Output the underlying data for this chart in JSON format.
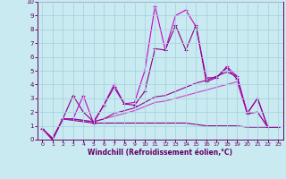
{
  "xlabel": "Windchill (Refroidissement éolien,°C)",
  "xlim": [
    -0.5,
    23.5
  ],
  "ylim": [
    0,
    10
  ],
  "xticks": [
    0,
    1,
    2,
    3,
    4,
    5,
    6,
    7,
    8,
    9,
    10,
    11,
    12,
    13,
    14,
    15,
    16,
    17,
    18,
    19,
    20,
    21,
    22,
    23
  ],
  "yticks": [
    0,
    1,
    2,
    3,
    4,
    5,
    6,
    7,
    8,
    9,
    10
  ],
  "background_color": "#c8eaf0",
  "grid_color": "#aad4e0",
  "lines": [
    {
      "x": [
        0,
        1,
        2,
        3,
        4,
        5,
        6,
        7,
        8,
        9,
        10,
        11,
        12,
        13,
        14,
        15,
        16,
        17,
        18,
        19,
        20,
        21,
        22,
        23
      ],
      "y": [
        0.8,
        0.0,
        1.5,
        1.5,
        3.2,
        1.2,
        2.5,
        4.0,
        2.6,
        2.7,
        5.0,
        9.7,
        6.5,
        9.0,
        9.4,
        8.2,
        4.5,
        4.5,
        5.3,
        4.6,
        1.9,
        3.0,
        0.9,
        0.9
      ],
      "color": "#cc00cc",
      "lw": 0.8,
      "marker": "+"
    },
    {
      "x": [
        0,
        1,
        2,
        3,
        4,
        5,
        6,
        7,
        8,
        9,
        10,
        11,
        12,
        13,
        14,
        15,
        16,
        17,
        18,
        19,
        20,
        21,
        22,
        23
      ],
      "y": [
        0.8,
        0.0,
        1.5,
        3.2,
        2.0,
        1.3,
        2.5,
        3.8,
        2.6,
        2.5,
        3.5,
        6.6,
        6.5,
        8.3,
        6.5,
        8.3,
        4.2,
        4.5,
        5.2,
        4.4,
        1.9,
        3.0,
        0.9,
        0.9
      ],
      "color": "#880088",
      "lw": 0.8,
      "marker": "+"
    },
    {
      "x": [
        0,
        1,
        2,
        3,
        4,
        5,
        6,
        7,
        8,
        9,
        10,
        11,
        12,
        13,
        14,
        15,
        16,
        17,
        18,
        19,
        20,
        21,
        22,
        23
      ],
      "y": [
        0.8,
        0.0,
        1.5,
        1.4,
        1.3,
        1.2,
        1.2,
        1.2,
        1.2,
        1.2,
        1.2,
        1.2,
        1.2,
        1.2,
        1.2,
        1.1,
        1.0,
        1.0,
        1.0,
        1.0,
        0.9,
        0.9,
        0.9,
        0.9
      ],
      "color": "#880088",
      "lw": 0.8,
      "marker": null
    },
    {
      "x": [
        0,
        1,
        2,
        3,
        4,
        5,
        6,
        7,
        8,
        9,
        10,
        11,
        12,
        13,
        14,
        15,
        16,
        17,
        18,
        19,
        20,
        21,
        22,
        23
      ],
      "y": [
        0.8,
        0.1,
        1.5,
        1.5,
        1.4,
        1.3,
        1.5,
        1.7,
        1.9,
        2.1,
        2.4,
        2.7,
        2.8,
        3.0,
        3.2,
        3.4,
        3.6,
        3.8,
        4.0,
        4.2,
        1.9,
        2.0,
        0.9,
        0.9
      ],
      "color": "#cc44cc",
      "lw": 0.8,
      "marker": null
    },
    {
      "x": [
        0,
        1,
        2,
        3,
        4,
        5,
        6,
        7,
        8,
        9,
        10,
        11,
        12,
        13,
        14,
        15,
        16,
        17,
        18,
        19,
        20,
        21,
        22,
        23
      ],
      "y": [
        0.8,
        0.1,
        1.5,
        1.5,
        1.4,
        1.3,
        1.5,
        1.9,
        2.1,
        2.3,
        2.7,
        3.1,
        3.2,
        3.5,
        3.8,
        4.1,
        4.3,
        4.6,
        4.9,
        4.6,
        1.9,
        2.0,
        0.9,
        0.9
      ],
      "color": "#990099",
      "lw": 0.8,
      "marker": null
    }
  ],
  "tick_color": "#660066",
  "spine_color": "#660066",
  "xlabel_color": "#660066",
  "xlabel_fontsize": 5.5,
  "tick_fontsize_x": 4.5,
  "tick_fontsize_y": 5.0
}
